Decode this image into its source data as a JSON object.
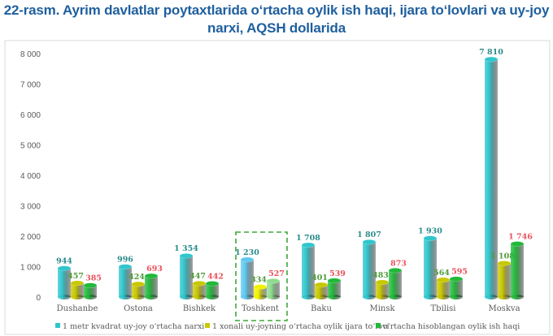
{
  "chart_data": {
    "type": "bar",
    "title": "22-rasm.  Ayrim davlatlar poytaxtlarida o‘rtacha oylik ish haqi, ijara to‘lovlari va uy-joy narxi, AQSH dollarida",
    "categories": [
      "Dushanbe",
      "Ostona",
      "Bishkek",
      "Toshkent",
      "Baku",
      "Minsk",
      "Tbilisi",
      "Moskva"
    ],
    "series": [
      {
        "name": "1 metr kvadrat uy-joy o‘rtacha narxi",
        "values": [
          944,
          996,
          1354,
          1230,
          1708,
          1807,
          1930,
          7810
        ],
        "color": "#2fc6cc",
        "label_color": "#2a8a8a",
        "highlight_color": "#5fc8f0"
      },
      {
        "name": "1 xonali uy-joyning o‘rtacha oylik ijara to‘lovi",
        "values": [
          457,
          424,
          447,
          334,
          401,
          483,
          564,
          1108
        ],
        "color": "#c8c800",
        "label_color": "#4f9a3a",
        "highlight_color": "#f2f200"
      },
      {
        "name": "o‘rtacha hisoblangan oylik ish haqi",
        "values": [
          385,
          693,
          442,
          527,
          539,
          873,
          595,
          1746
        ],
        "color": "#22b83a",
        "label_color": "#e8505b",
        "highlight_color": "#8edc8e"
      }
    ],
    "data_labels": [
      [
        "944",
        "996",
        "1 354",
        "1 230",
        "1 708",
        "1 807",
        "1 930",
        "7 810"
      ],
      [
        "457",
        "424",
        "447",
        "334",
        "401",
        "483",
        "564",
        "1 108"
      ],
      [
        "385",
        "693",
        "442",
        "527",
        "539",
        "873",
        "595",
        "1 746"
      ]
    ],
    "yticks": [
      0,
      1000,
      2000,
      3000,
      4000,
      5000,
      6000,
      7000,
      8000
    ],
    "ytick_labels": [
      "0",
      "1 000",
      "2 000",
      "3 000",
      "4 000",
      "5 000",
      "6 000",
      "7 000",
      "8 000"
    ],
    "ylim": [
      0,
      8000
    ],
    "highlighted_category": "Toshkent",
    "highlight_box_color": "#3aa83a",
    "grid": false,
    "legend_position": "bottom"
  }
}
